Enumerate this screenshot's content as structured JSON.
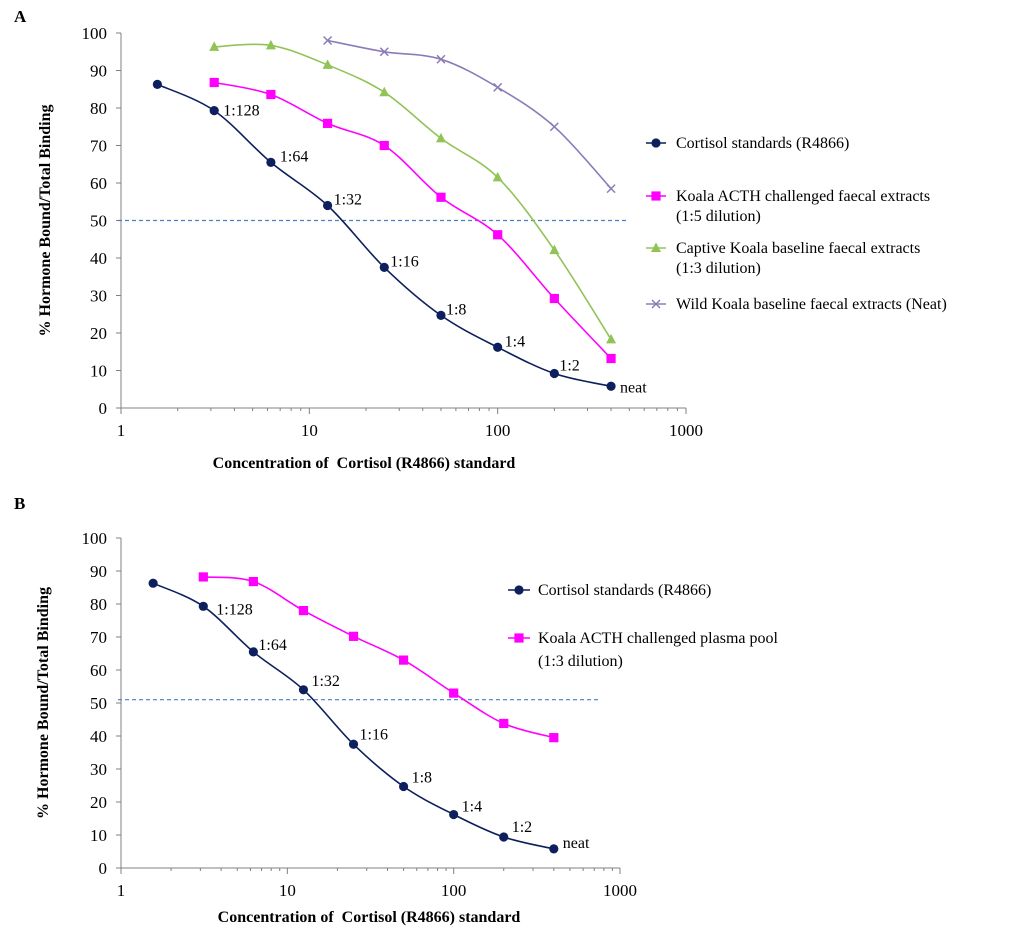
{
  "chart_data": [
    {
      "panel": "A",
      "type": "line",
      "xscale": "log",
      "xlim": [
        1,
        1000
      ],
      "ylim": [
        0,
        100
      ],
      "xticks": [
        "1",
        "10",
        "100",
        "1000"
      ],
      "yticks": [
        "0",
        "10",
        "20",
        "30",
        "40",
        "50",
        "60",
        "70",
        "80",
        "90",
        "100"
      ],
      "xlabel": "Concentration of  Cortisol (R4866) standard",
      "ylabel": "% Hormone Bound/Total Binding",
      "reference_line_y": 50,
      "legend_position": "right",
      "series": [
        {
          "name": "Cortisol standards (R4866)",
          "color": "#0d1f5c",
          "marker": "circle",
          "x": [
            1.56,
            3.125,
            6.25,
            12.5,
            25,
            50,
            100,
            200,
            400
          ],
          "y": [
            86.3,
            79.3,
            65.5,
            54.0,
            37.5,
            24.7,
            16.2,
            9.2,
            5.8
          ],
          "labels": [
            "",
            "1:128",
            "1:64",
            "1:32",
            "1:16",
            "1:8",
            "1:4",
            "1:2",
            "neat"
          ]
        },
        {
          "name": "Koala ACTH challenged faecal extracts (1:5 dilution)",
          "color": "#ff00ff",
          "marker": "square",
          "x": [
            3.125,
            6.25,
            12.5,
            25,
            50,
            100,
            200,
            400
          ],
          "y": [
            86.8,
            83.6,
            75.9,
            70.0,
            56.2,
            46.2,
            29.2,
            13.2
          ]
        },
        {
          "name": "Captive Koala baseline faecal extracts (1:3 dilution)",
          "color": "#92c357",
          "marker": "triangle",
          "x": [
            3.125,
            6.25,
            12.5,
            25,
            50,
            100,
            200,
            400
          ],
          "y": [
            96.3,
            96.7,
            91.5,
            84.2,
            71.9,
            61.5,
            42.1,
            18.3
          ]
        },
        {
          "name": "Wild Koala baseline faecal extracts (Neat)",
          "color": "#8b7bb8",
          "marker": "x",
          "x": [
            12.5,
            25,
            50,
            100,
            200,
            400
          ],
          "y": [
            98.0,
            95.0,
            93.0,
            85.5,
            75.0,
            58.5
          ]
        }
      ]
    },
    {
      "panel": "B",
      "type": "line",
      "xscale": "log",
      "xlim": [
        1,
        1000
      ],
      "ylim": [
        0,
        100
      ],
      "xticks": [
        "1",
        "10",
        "100",
        "1000"
      ],
      "yticks": [
        "0",
        "10",
        "20",
        "30",
        "40",
        "50",
        "60",
        "70",
        "80",
        "90",
        "100"
      ],
      "xlabel": "Concentration of  Cortisol (R4866) standard",
      "ylabel": "% Hormone Bound/Total Binding",
      "reference_line_y": 51,
      "legend_position": "right",
      "series": [
        {
          "name": "Cortisol standards (R4866)",
          "color": "#0d1f5c",
          "marker": "circle",
          "x": [
            1.56,
            3.125,
            6.25,
            12.5,
            25,
            50,
            100,
            200,
            400
          ],
          "y": [
            86.3,
            79.3,
            65.5,
            54.0,
            37.5,
            24.7,
            16.2,
            9.4,
            5.8
          ],
          "labels": [
            "",
            "1:128",
            "1:64",
            "1:32",
            "1:16",
            "1:8",
            "1:4",
            "1:2",
            "neat"
          ]
        },
        {
          "name": "Koala ACTH challenged plasma pool (1:3 dilution)",
          "color": "#ff00ff",
          "marker": "square",
          "x": [
            3.125,
            6.25,
            12.5,
            25,
            50,
            100,
            200,
            400
          ],
          "y": [
            88.2,
            86.8,
            78.0,
            70.2,
            63.0,
            53.0,
            43.8,
            39.5
          ]
        }
      ]
    }
  ]
}
